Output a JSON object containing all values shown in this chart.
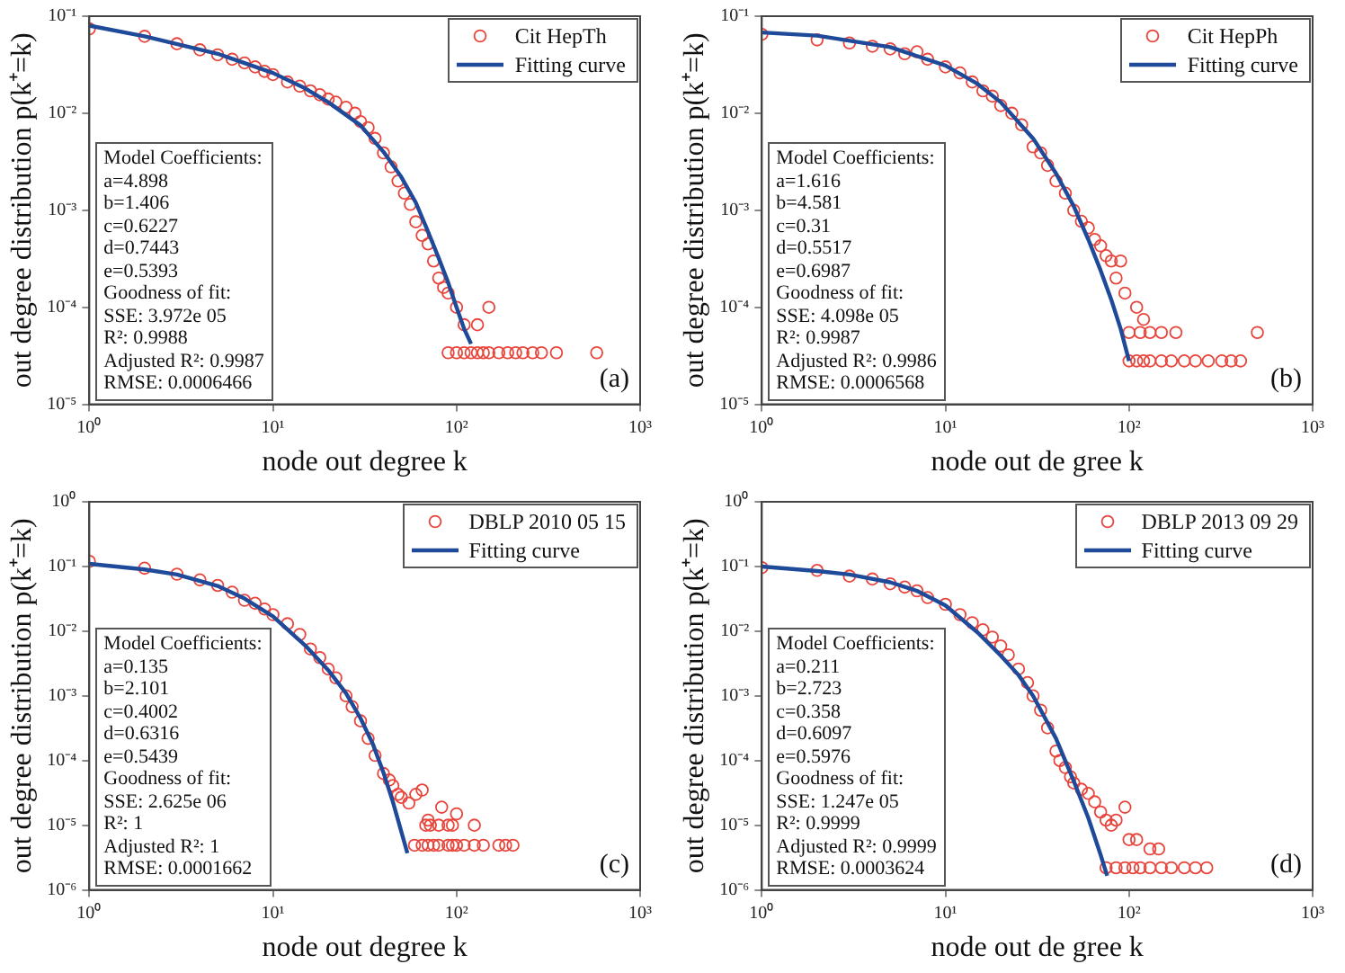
{
  "chart_data": [
    {
      "type": "scatter",
      "xlabel": "node out degree k",
      "ylabel": "out degree distribution p(k⁺=k)",
      "log": "xy",
      "grid": false,
      "legend": "top right",
      "xlim": [
        1,
        1000
      ],
      "xticks": [
        {
          "value": 1,
          "label": "10⁰"
        },
        {
          "value": 10,
          "label": "10¹"
        },
        {
          "value": 100,
          "label": "10²"
        },
        {
          "value": 1000,
          "label": "10³"
        }
      ],
      "ylim": [
        1e-05,
        0.1
      ],
      "yticks": [
        {
          "value": 1e-05,
          "label": "10⁻⁵"
        },
        {
          "value": 0.0001,
          "label": "10⁻⁴"
        },
        {
          "value": 0.001,
          "label": "10⁻³"
        },
        {
          "value": 0.01,
          "label": "10⁻²"
        },
        {
          "value": 0.1,
          "label": "10⁻¹"
        }
      ],
      "annotations": [
        "Model Coefficients:",
        "a=4.898",
        "b=1.406",
        "c=0.6227",
        "d=0.7443",
        "e=0.5393",
        "Goodness of fit:",
        "SSE: 3.972e 05",
        "R²: 0.9988",
        "Adjusted R²: 0.9987",
        "RMSE: 0.0006466",
        "(a)"
      ],
      "series": [
        {
          "name": "Cit HepTh",
          "type": "scatter",
          "marker": "circle",
          "color": "#e8453c",
          "x": [
            1,
            2,
            3,
            4,
            5,
            6,
            7,
            8,
            9,
            10,
            12,
            14,
            16,
            18,
            20,
            22,
            25,
            28,
            30,
            33,
            36,
            40,
            44,
            48,
            52,
            56,
            60,
            65,
            70,
            75,
            80,
            85,
            90,
            100,
            110,
            130,
            150,
            90,
            100,
            110,
            120,
            130,
            140,
            150,
            170,
            190,
            210,
            230,
            260,
            290,
            350,
            580
          ],
          "values": [
            0.074,
            0.062,
            0.052,
            0.045,
            0.04,
            0.036,
            0.033,
            0.03,
            0.027,
            0.025,
            0.021,
            0.019,
            0.017,
            0.0155,
            0.014,
            0.013,
            0.0115,
            0.01,
            0.0082,
            0.0071,
            0.0055,
            0.0039,
            0.0028,
            0.002,
            0.0015,
            0.00115,
            0.00076,
            0.00055,
            0.00045,
            0.0003,
            0.0002,
            0.00016,
            0.00014,
            0.0001,
            6.6e-05,
            6.6e-05,
            0.0001,
            3.4e-05,
            3.4e-05,
            3.4e-05,
            3.4e-05,
            3.4e-05,
            3.4e-05,
            3.4e-05,
            3.4e-05,
            3.4e-05,
            3.4e-05,
            3.4e-05,
            3.4e-05,
            3.4e-05,
            3.4e-05,
            3.4e-05
          ]
        },
        {
          "name": "Fitting curve",
          "type": "line",
          "marker": "none",
          "color": "#1f4a9a",
          "x": [
            1,
            2,
            5,
            10,
            15,
            20,
            30,
            40,
            50,
            60,
            70,
            80,
            90,
            100,
            110,
            120
          ],
          "values": [
            0.08,
            0.062,
            0.041,
            0.026,
            0.018,
            0.013,
            0.0075,
            0.004,
            0.0022,
            0.0012,
            0.0006,
            0.00032,
            0.00018,
            0.0001,
            6e-05,
            4.2e-05
          ]
        }
      ]
    },
    {
      "type": "scatter",
      "xlabel": "node out de gree k",
      "ylabel": "out degree distribution p(k⁺=k)",
      "log": "xy",
      "grid": false,
      "legend": "top right",
      "xlim": [
        1,
        1000
      ],
      "xticks": [
        {
          "value": 1,
          "label": "10⁰"
        },
        {
          "value": 10,
          "label": "10¹"
        },
        {
          "value": 100,
          "label": "10²"
        },
        {
          "value": 1000,
          "label": "10³"
        }
      ],
      "ylim": [
        1e-05,
        0.1
      ],
      "yticks": [
        {
          "value": 1e-05,
          "label": "10⁻⁵"
        },
        {
          "value": 0.0001,
          "label": "10⁻⁴"
        },
        {
          "value": 0.001,
          "label": "10⁻³"
        },
        {
          "value": 0.01,
          "label": "10⁻²"
        },
        {
          "value": 0.1,
          "label": "10⁻¹"
        }
      ],
      "annotations": [
        "Model Coefficients:",
        "a=1.616",
        "b=4.581",
        "c=0.31",
        "d=0.5517",
        "e=0.6987",
        "Goodness of fit:",
        "SSE: 4.098e 05",
        "R²: 0.9987",
        "Adjusted R²: 0.9986",
        "RMSE: 0.0006568",
        "(b)"
      ],
      "series": [
        {
          "name": "Cit HepPh",
          "type": "scatter",
          "marker": "circle",
          "color": "#e8453c",
          "x": [
            1,
            2,
            3,
            4,
            5,
            6,
            7,
            8,
            10,
            12,
            14,
            16,
            18,
            20,
            23,
            26,
            30,
            33,
            36,
            40,
            45,
            50,
            55,
            60,
            65,
            70,
            75,
            80,
            85,
            90,
            95,
            110,
            120,
            100,
            115,
            130,
            150,
            180,
            500,
            100,
            110,
            120,
            130,
            150,
            170,
            200,
            230,
            270,
            320,
            360,
            405
          ],
          "values": [
            0.065,
            0.057,
            0.053,
            0.049,
            0.046,
            0.041,
            0.043,
            0.036,
            0.03,
            0.026,
            0.021,
            0.017,
            0.015,
            0.012,
            0.01,
            0.0076,
            0.0045,
            0.0039,
            0.0029,
            0.002,
            0.0015,
            0.001,
            0.00077,
            0.00066,
            0.0005,
            0.00043,
            0.00034,
            0.0003,
            0.0002,
            0.0003,
            0.00014,
            0.0001,
            7.5e-05,
            5.5e-05,
            5.5e-05,
            5.5e-05,
            5.5e-05,
            5.5e-05,
            5.5e-05,
            2.8e-05,
            2.8e-05,
            2.8e-05,
            2.8e-05,
            2.8e-05,
            2.8e-05,
            2.8e-05,
            2.8e-05,
            2.8e-05,
            2.8e-05,
            2.8e-05,
            2.8e-05
          ]
        },
        {
          "name": "Fitting curve",
          "type": "line",
          "marker": "none",
          "color": "#1f4a9a",
          "x": [
            1,
            2,
            5,
            10,
            15,
            20,
            30,
            40,
            50,
            60,
            70,
            80,
            90,
            100
          ],
          "values": [
            0.068,
            0.063,
            0.048,
            0.031,
            0.02,
            0.013,
            0.0055,
            0.0024,
            0.0011,
            0.0005,
            0.00024,
            0.00012,
            6e-05,
            2.8e-05
          ]
        }
      ]
    },
    {
      "type": "scatter",
      "xlabel": "node out degree k",
      "ylabel": "out degree distribution p(k⁺=k)",
      "log": "xy",
      "grid": false,
      "legend": "top right",
      "xlim": [
        1,
        1000
      ],
      "xticks": [
        {
          "value": 1,
          "label": "10⁰"
        },
        {
          "value": 10,
          "label": "10¹"
        },
        {
          "value": 100,
          "label": "10²"
        },
        {
          "value": 1000,
          "label": "10³"
        }
      ],
      "ylim": [
        1e-06,
        1
      ],
      "yticks": [
        {
          "value": 1e-06,
          "label": "10⁻⁶"
        },
        {
          "value": 1e-05,
          "label": "10⁻⁵"
        },
        {
          "value": 0.0001,
          "label": "10⁻⁴"
        },
        {
          "value": 0.001,
          "label": "10⁻³"
        },
        {
          "value": 0.01,
          "label": "10⁻²"
        },
        {
          "value": 0.1,
          "label": "10⁻¹"
        },
        {
          "value": 1,
          "label": "10⁰"
        }
      ],
      "annotations": [
        "Model Coefficients:",
        "a=0.135",
        "b=2.101",
        "c=0.4002",
        "d=0.6316",
        "e=0.5439",
        "Goodness of fit:",
        "SSE: 2.625e 06",
        "R²: 1",
        "Adjusted R²: 1",
        "RMSE: 0.0001662",
        "(c)"
      ],
      "series": [
        {
          "name": "DBLP 2010 05 15",
          "type": "scatter",
          "marker": "circle",
          "color": "#e8453c",
          "x": [
            1,
            2,
            3,
            4,
            5,
            6,
            7,
            8,
            9,
            10,
            12,
            14,
            16,
            18,
            20,
            22,
            25,
            27,
            30,
            33,
            36,
            40,
            43,
            45,
            48,
            50,
            55,
            60,
            65,
            70,
            83,
            100,
            68,
            72,
            80,
            90,
            95,
            125,
            59,
            65,
            70,
            75,
            80,
            90,
            95,
            100,
            110,
            125,
            140,
            170,
            185,
            203
          ],
          "values": [
            0.12,
            0.094,
            0.076,
            0.062,
            0.051,
            0.04,
            0.03,
            0.027,
            0.022,
            0.018,
            0.013,
            0.0089,
            0.0053,
            0.0039,
            0.0026,
            0.0019,
            0.001,
            0.00068,
            0.00041,
            0.00022,
            0.00012,
            6.3e-05,
            5e-05,
            4.1e-05,
            3e-05,
            2.7e-05,
            2.2e-05,
            3e-05,
            3.5e-05,
            1.2e-05,
            1.9e-05,
            1.5e-05,
            1e-05,
            1e-05,
            1e-05,
            1e-05,
            1e-05,
            1e-05,
            4.9e-06,
            4.9e-06,
            4.9e-06,
            4.9e-06,
            4.9e-06,
            4.9e-06,
            4.9e-06,
            4.9e-06,
            4.9e-06,
            4.9e-06,
            4.9e-06,
            4.9e-06,
            4.9e-06,
            4.9e-06
          ]
        },
        {
          "name": "Fitting curve",
          "type": "line",
          "marker": "none",
          "color": "#1f4a9a",
          "x": [
            1,
            2,
            3,
            5,
            7,
            10,
            15,
            20,
            25,
            30,
            35,
            40,
            45,
            50,
            54
          ],
          "values": [
            0.11,
            0.09,
            0.075,
            0.05,
            0.032,
            0.017,
            0.006,
            0.0025,
            0.0011,
            0.00045,
            0.00018,
            6.5e-05,
            2.3e-05,
            8e-06,
            3.7e-06
          ]
        }
      ]
    },
    {
      "type": "scatter",
      "xlabel": "node out de gree k",
      "ylabel": "out degree distribution p(k⁺=k)",
      "log": "xy",
      "grid": false,
      "legend": "top right",
      "xlim": [
        1,
        1000
      ],
      "xticks": [
        {
          "value": 1,
          "label": "10⁰"
        },
        {
          "value": 10,
          "label": "10¹"
        },
        {
          "value": 100,
          "label": "10²"
        },
        {
          "value": 1000,
          "label": "10³"
        }
      ],
      "ylim": [
        1e-06,
        1
      ],
      "yticks": [
        {
          "value": 1e-06,
          "label": "10⁻⁶"
        },
        {
          "value": 1e-05,
          "label": "10⁻⁵"
        },
        {
          "value": 0.0001,
          "label": "10⁻⁴"
        },
        {
          "value": 0.001,
          "label": "10⁻³"
        },
        {
          "value": 0.01,
          "label": "10⁻²"
        },
        {
          "value": 0.1,
          "label": "10⁻¹"
        },
        {
          "value": 1,
          "label": "10⁰"
        }
      ],
      "annotations": [
        "Model Coefficients:",
        "a=0.211",
        "b=2.723",
        "c=0.358",
        "d=0.6097",
        "e=0.5976",
        "Goodness of fit:",
        "SSE: 1.247e 05",
        "R²: 0.9999",
        "Adjusted R²: 0.9999",
        "RMSE: 0.0003624",
        "(d)"
      ],
      "series": [
        {
          "name": "DBLP 2013 09 29",
          "type": "scatter",
          "marker": "circle",
          "color": "#e8453c",
          "x": [
            1,
            2,
            3,
            4,
            5,
            6,
            7,
            8,
            10,
            12,
            14,
            16,
            18,
            20,
            22,
            25,
            28,
            30,
            33,
            36,
            40,
            42,
            45,
            48,
            50,
            55,
            60,
            65,
            70,
            75,
            80,
            85,
            95,
            100,
            110,
            130,
            145,
            75,
            85,
            95,
            105,
            115,
            130,
            150,
            170,
            200,
            230,
            265
          ],
          "values": [
            0.096,
            0.087,
            0.071,
            0.064,
            0.054,
            0.048,
            0.042,
            0.033,
            0.026,
            0.018,
            0.0135,
            0.0105,
            0.0081,
            0.0059,
            0.0043,
            0.0026,
            0.0016,
            0.001,
            0.0006,
            0.00032,
            0.00014,
            0.0001,
            7.8e-05,
            5.6e-05,
            4.5e-05,
            3.6e-05,
            3.1e-05,
            2.3e-05,
            1.6e-05,
            1.2e-05,
            1e-05,
            1.2e-05,
            1.9e-05,
            6e-06,
            6e-06,
            4.3e-06,
            4.3e-06,
            2.2e-06,
            2.2e-06,
            2.2e-06,
            2.2e-06,
            2.2e-06,
            2.2e-06,
            2.2e-06,
            2.2e-06,
            2.2e-06,
            2.2e-06,
            2.2e-06
          ]
        },
        {
          "name": "Fitting curve",
          "type": "line",
          "marker": "none",
          "color": "#1f4a9a",
          "x": [
            1,
            2,
            3,
            5,
            7,
            10,
            15,
            20,
            25,
            30,
            40,
            50,
            60,
            70,
            76
          ],
          "values": [
            0.1,
            0.085,
            0.075,
            0.057,
            0.042,
            0.025,
            0.0095,
            0.0042,
            0.0021,
            0.001,
            0.00022,
            4.8e-05,
            1.3e-05,
            3.5e-06,
            1.65e-06
          ]
        }
      ]
    }
  ]
}
